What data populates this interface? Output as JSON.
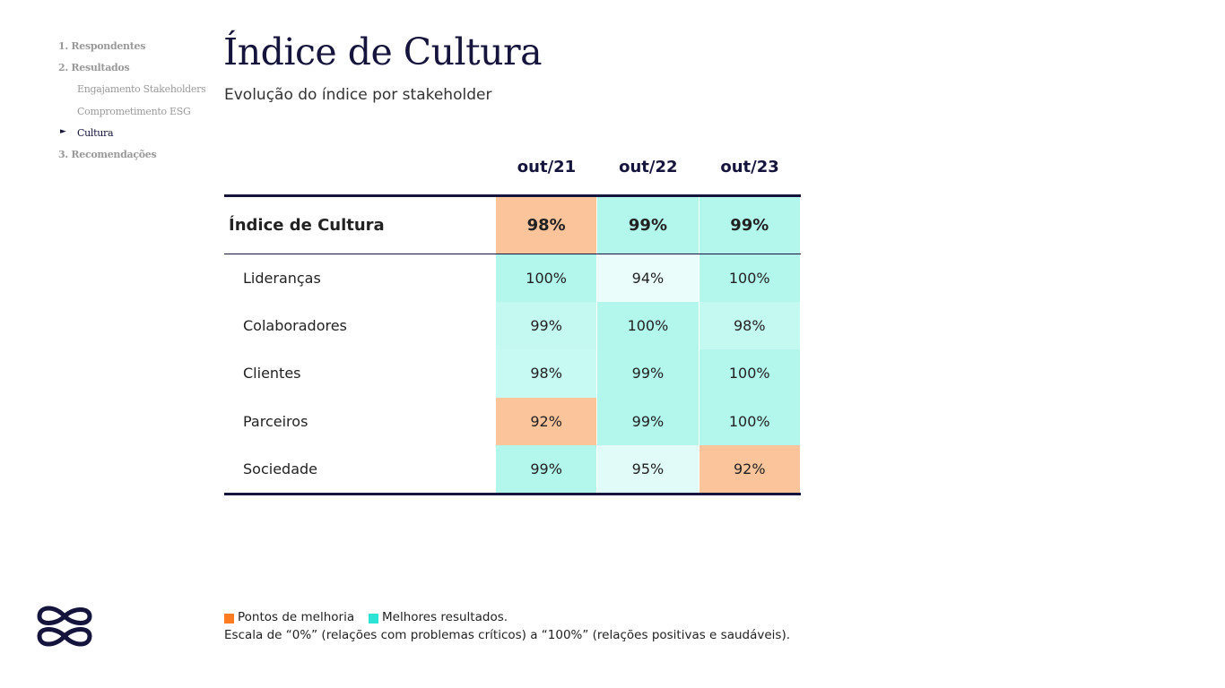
{
  "nav": {
    "sections": [
      {
        "label": "1. Respondentes"
      },
      {
        "label": "2. Resultados",
        "items": [
          "Engajamento Stakeholders",
          "Comprometimento ESG",
          "Cultura"
        ]
      },
      {
        "label": "3. Recomendações"
      }
    ]
  },
  "header": {
    "title": "Índice de Cultura",
    "subtitle": "Evolução do índice por stakeholder"
  },
  "table": {
    "columns": [
      "out/21",
      "out/22",
      "out/23"
    ],
    "summary": {
      "label": "Índice de Cultura",
      "cells": [
        {
          "text": "98%",
          "color": "#fcc49b"
        },
        {
          "text": "99%",
          "color": "#b2f6ec"
        },
        {
          "text": "99%",
          "color": "#b2f6ec"
        }
      ]
    },
    "rows": [
      {
        "label": "Lideranças",
        "cells": [
          {
            "text": "100%",
            "color": "#b2f6ec"
          },
          {
            "text": "94%",
            "color": "#ebfdfb"
          },
          {
            "text": "100%",
            "color": "#b2f6ec"
          }
        ]
      },
      {
        "label": "Colaboradores",
        "cells": [
          {
            "text": "99%",
            "color": "#c3f9f1"
          },
          {
            "text": "100%",
            "color": "#b2f6ec"
          },
          {
            "text": "98%",
            "color": "#c3f9f1"
          }
        ]
      },
      {
        "label": "Clientes",
        "cells": [
          {
            "text": "98%",
            "color": "#c7faf3"
          },
          {
            "text": "99%",
            "color": "#b2f6ec"
          },
          {
            "text": "100%",
            "color": "#b2f6ec"
          }
        ]
      },
      {
        "label": "Parceiros",
        "cells": [
          {
            "text": "92%",
            "color": "#fcc49b"
          },
          {
            "text": "99%",
            "color": "#b2f6ec"
          },
          {
            "text": "100%",
            "color": "#b2f6ec"
          }
        ]
      },
      {
        "label": "Sociedade",
        "cells": [
          {
            "text": "99%",
            "color": "#b2f6ec"
          },
          {
            "text": "95%",
            "color": "#e1fcf8"
          },
          {
            "text": "92%",
            "color": "#fcc49b"
          }
        ]
      }
    ]
  },
  "legend": [
    {
      "label": "Pontos de melhoria",
      "color": "#ff7b22"
    },
    {
      "label": "Melhores resultados.",
      "color": "#2ce3d5"
    }
  ],
  "footnote": "Escala de “0%” (relações com problemas críticos) a “100%” (relações positivas e saudáveis)."
}
